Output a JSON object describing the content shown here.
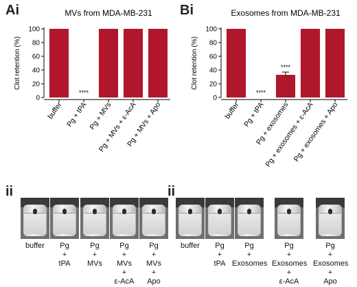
{
  "panels": {
    "a_letter": "Ai",
    "b_letter": "Bi",
    "ii_left": "ii",
    "ii_right": "ii"
  },
  "chart_data": [
    {
      "type": "bar",
      "title": "MVs from MDA-MB-231",
      "ylabel": "Clot retention (%)",
      "ylim": [
        0,
        100
      ],
      "yticks": [
        "0",
        "20",
        "40",
        "60",
        "80",
        "100"
      ],
      "categories": [
        "buffer",
        "Pg + tPA",
        "Pg + MVs",
        "Pg + MVs + ε-AcA",
        "Pg + MVs + Apo"
      ],
      "values": [
        100,
        0,
        100,
        100,
        100
      ],
      "annotations": [
        "",
        "****",
        "",
        "",
        ""
      ],
      "color": "#b0172c"
    },
    {
      "type": "bar",
      "title": "Exosomes from MDA-MB-231",
      "ylabel": "Clot retention (%)",
      "ylim": [
        0,
        100
      ],
      "yticks": [
        "0",
        "20",
        "40",
        "60",
        "80",
        "100"
      ],
      "categories": [
        "buffer",
        "Pg + tPA",
        "Pg + exosomes",
        "Pg + exosomes + ε-AcA",
        "Pg + exosomes + Apo"
      ],
      "values": [
        100,
        0,
        33,
        100,
        100
      ],
      "errors": [
        0,
        0,
        4,
        0,
        0
      ],
      "annotations": [
        "",
        "****",
        "****",
        "",
        ""
      ],
      "color": "#b0172c"
    }
  ],
  "vials_left": [
    {
      "label": "buffer"
    },
    {
      "label": "Pg\n+\ntPA"
    },
    {
      "label": "Pg\n+\nMVs"
    },
    {
      "label": "Pg\n+\nMVs\n+\nε-AcA"
    },
    {
      "label": "Pg\n+\nMVs\n+\nApo"
    }
  ],
  "vials_right": [
    {
      "label": "buffer"
    },
    {
      "label": "Pg\n+\ntPA"
    },
    {
      "label": "Pg\n+\nExosomes"
    },
    {
      "label": "Pg\n+\nExosomes\n+\nε-AcA"
    },
    {
      "label": "Pg\n+\nExosomes\n+\nApo"
    }
  ]
}
